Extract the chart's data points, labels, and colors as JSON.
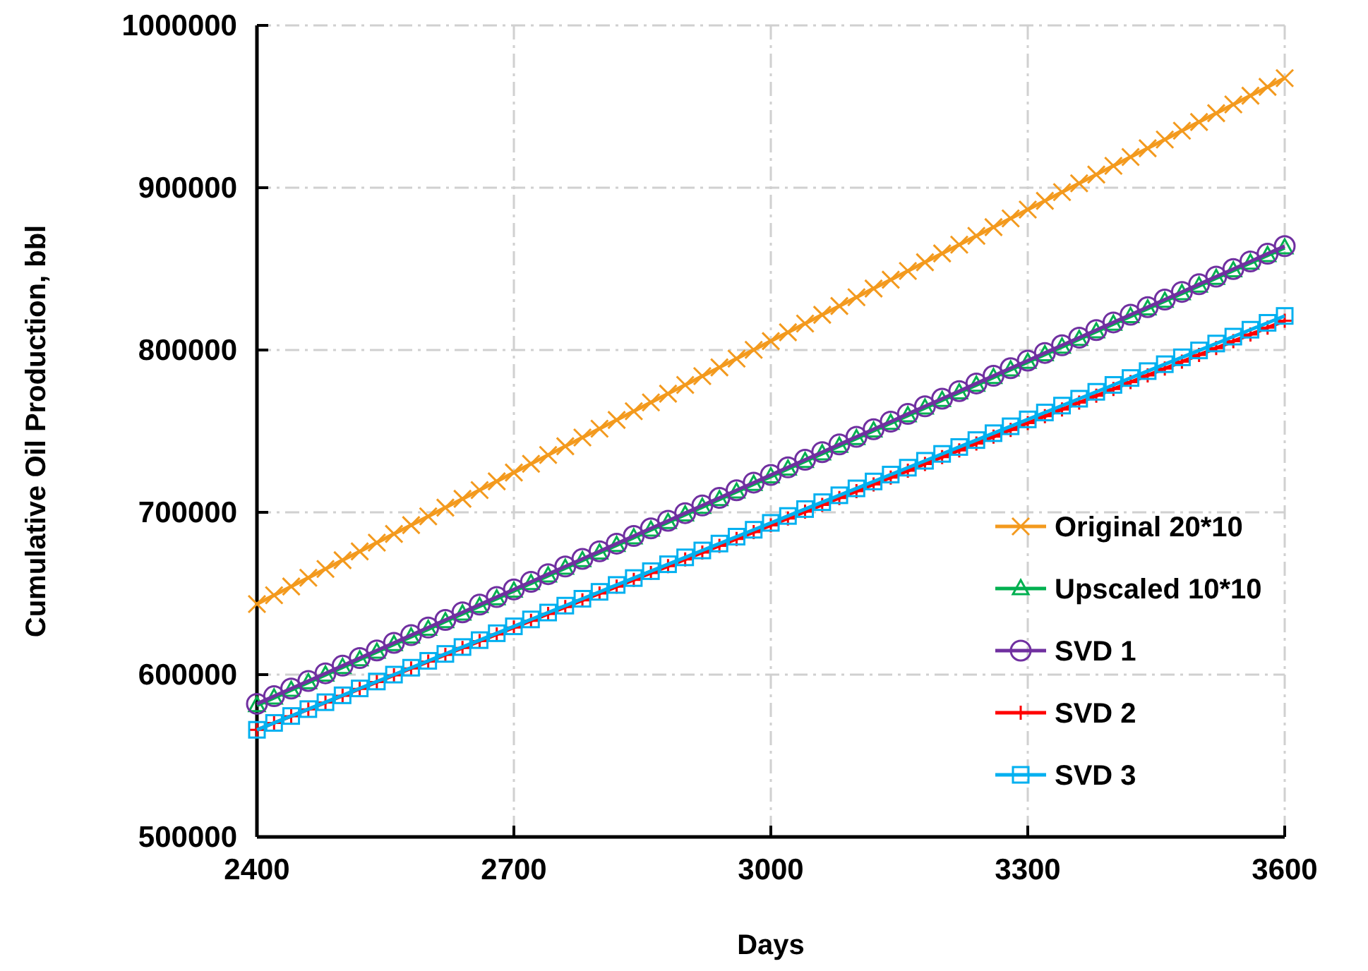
{
  "chart_data": {
    "type": "line",
    "xlabel": "Days",
    "ylabel": "Cumulative Oil Production, bbl",
    "x": [
      2400,
      2420,
      2440,
      2460,
      2480,
      2500,
      2520,
      2540,
      2560,
      2580,
      2600,
      2620,
      2640,
      2660,
      2680,
      2700,
      2720,
      2740,
      2760,
      2780,
      2800,
      2820,
      2840,
      2860,
      2880,
      2900,
      2920,
      2940,
      2960,
      2980,
      3000,
      3020,
      3040,
      3060,
      3080,
      3100,
      3120,
      3140,
      3160,
      3180,
      3200,
      3220,
      3240,
      3260,
      3280,
      3300,
      3320,
      3340,
      3360,
      3380,
      3400,
      3420,
      3440,
      3460,
      3480,
      3500,
      3520,
      3540,
      3560,
      3580,
      3600
    ],
    "series": [
      {
        "name": "Original 20*10",
        "color": "#f39a1e",
        "marker": "cross",
        "values": [
          643500,
          648900,
          654300,
          659700,
          665100,
          670500,
          675900,
          681300,
          686700,
          692100,
          697500,
          702900,
          708300,
          713700,
          719100,
          724500,
          729900,
          735300,
          740700,
          746100,
          751500,
          756900,
          762300,
          767700,
          773100,
          778500,
          783900,
          789300,
          794700,
          800100,
          805500,
          810900,
          816300,
          821700,
          827100,
          832500,
          837900,
          843300,
          848700,
          854100,
          859500,
          864900,
          870300,
          875700,
          881100,
          886500,
          891900,
          897300,
          902700,
          908100,
          913500,
          918900,
          924300,
          929700,
          935100,
          940500,
          945900,
          951300,
          956700,
          962100,
          967500
        ]
      },
      {
        "name": "Upscaled 10*10",
        "color": "#00b050",
        "marker": "triangle",
        "values": [
          581000,
          585700,
          590400,
          595100,
          599800,
          604500,
          609200,
          613900,
          618600,
          623300,
          628000,
          632700,
          637400,
          642100,
          646800,
          651500,
          656200,
          660900,
          665600,
          670300,
          675000,
          679700,
          684400,
          689100,
          693800,
          698500,
          703200,
          707900,
          712600,
          717300,
          722000,
          726700,
          731400,
          736100,
          740800,
          745500,
          750200,
          754900,
          759600,
          764300,
          769000,
          773700,
          778400,
          783100,
          787800,
          792500,
          797200,
          801900,
          806600,
          811300,
          816000,
          820700,
          825400,
          830100,
          834800,
          839500,
          844200,
          848900,
          853600,
          858300,
          863000
        ]
      },
      {
        "name": "SVD 1",
        "color": "#7030a0",
        "marker": "circle",
        "values": [
          582000,
          586700,
          591400,
          596100,
          600800,
          605500,
          610200,
          614900,
          619600,
          624300,
          629000,
          633700,
          638400,
          643100,
          647800,
          652500,
          657200,
          661900,
          666600,
          671300,
          676000,
          680700,
          685400,
          690100,
          694800,
          699500,
          704200,
          708900,
          713600,
          718300,
          723000,
          727700,
          732400,
          737100,
          741800,
          746500,
          751200,
          755900,
          760600,
          765300,
          770000,
          774700,
          779400,
          784100,
          788800,
          793500,
          798200,
          802900,
          807600,
          812300,
          817000,
          821700,
          826400,
          831100,
          835800,
          840500,
          845200,
          849900,
          854600,
          859300,
          864000
        ]
      },
      {
        "name": "SVD 2",
        "color": "#ff0000",
        "marker": "plus",
        "values": [
          566000,
          570200,
          574400,
          578600,
          582800,
          587000,
          591200,
          595400,
          599600,
          603800,
          608000,
          612200,
          616400,
          620600,
          624800,
          629000,
          633200,
          637400,
          641600,
          645800,
          650000,
          654200,
          658400,
          662600,
          666800,
          671000,
          675200,
          679400,
          683600,
          687800,
          692000,
          696200,
          700400,
          704600,
          708800,
          713000,
          717200,
          721400,
          725600,
          729800,
          734000,
          738200,
          742400,
          746600,
          750800,
          755000,
          759200,
          763400,
          767600,
          771800,
          776000,
          780200,
          784400,
          788600,
          792800,
          797000,
          801200,
          805400,
          809600,
          813800,
          818000
        ]
      },
      {
        "name": "SVD 3",
        "color": "#00b0f0",
        "marker": "square",
        "values": [
          566000,
          570250,
          574500,
          578750,
          583000,
          587250,
          591500,
          595750,
          600000,
          604250,
          608500,
          612750,
          617000,
          621250,
          625500,
          629750,
          634000,
          638250,
          642500,
          646750,
          651000,
          655250,
          659500,
          663750,
          668000,
          672250,
          676500,
          680750,
          685000,
          689250,
          693500,
          697750,
          702000,
          706250,
          710500,
          714750,
          719000,
          723250,
          727500,
          731750,
          736000,
          740250,
          744500,
          748750,
          753000,
          757250,
          761500,
          765750,
          770000,
          774250,
          778500,
          782750,
          787000,
          791250,
          795500,
          799750,
          804000,
          808250,
          812500,
          816750,
          821000
        ]
      }
    ],
    "xlim": [
      2400,
      3600
    ],
    "xticks": [
      2400,
      2700,
      3000,
      3300,
      3600
    ],
    "ylim": [
      500000,
      1000000
    ],
    "yticks": [
      500000,
      600000,
      700000,
      800000,
      900000,
      1000000
    ],
    "grid": true,
    "legend": "bottom right"
  }
}
